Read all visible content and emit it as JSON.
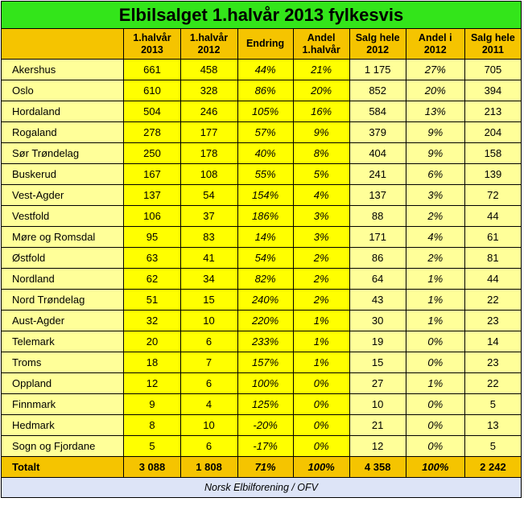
{
  "title": "Elbilsalget 1.halvår 2013 fylkesvis",
  "headers": [
    {
      "l1": "1.halvår",
      "l2": "2013"
    },
    {
      "l1": "1.halvår",
      "l2": "2012"
    },
    {
      "l1": "Endring",
      "l2": ""
    },
    {
      "l1": "Andel",
      "l2": "1.halvår"
    },
    {
      "l1": "Salg hele",
      "l2": "2012"
    },
    {
      "l1": "Andel i",
      "l2": "2012"
    },
    {
      "l1": "Salg hele",
      "l2": "2011"
    }
  ],
  "rows": [
    {
      "name": "Akershus",
      "h2013": "661",
      "h2012": "458",
      "endring": "44%",
      "andel_h": "21%",
      "salg2012": "1 175",
      "andel2012": "27%",
      "salg2011": "705"
    },
    {
      "name": "Oslo",
      "h2013": "610",
      "h2012": "328",
      "endring": "86%",
      "andel_h": "20%",
      "salg2012": "852",
      "andel2012": "20%",
      "salg2011": "394"
    },
    {
      "name": "Hordaland",
      "h2013": "504",
      "h2012": "246",
      "endring": "105%",
      "andel_h": "16%",
      "salg2012": "584",
      "andel2012": "13%",
      "salg2011": "213"
    },
    {
      "name": "Rogaland",
      "h2013": "278",
      "h2012": "177",
      "endring": "57%",
      "andel_h": "9%",
      "salg2012": "379",
      "andel2012": "9%",
      "salg2011": "204"
    },
    {
      "name": "Sør Trøndelag",
      "h2013": "250",
      "h2012": "178",
      "endring": "40%",
      "andel_h": "8%",
      "salg2012": "404",
      "andel2012": "9%",
      "salg2011": "158"
    },
    {
      "name": "Buskerud",
      "h2013": "167",
      "h2012": "108",
      "endring": "55%",
      "andel_h": "5%",
      "salg2012": "241",
      "andel2012": "6%",
      "salg2011": "139"
    },
    {
      "name": "Vest-Agder",
      "h2013": "137",
      "h2012": "54",
      "endring": "154%",
      "andel_h": "4%",
      "salg2012": "137",
      "andel2012": "3%",
      "salg2011": "72"
    },
    {
      "name": "Vestfold",
      "h2013": "106",
      "h2012": "37",
      "endring": "186%",
      "andel_h": "3%",
      "salg2012": "88",
      "andel2012": "2%",
      "salg2011": "44"
    },
    {
      "name": "Møre og Romsdal",
      "h2013": "95",
      "h2012": "83",
      "endring": "14%",
      "andel_h": "3%",
      "salg2012": "171",
      "andel2012": "4%",
      "salg2011": "61"
    },
    {
      "name": "Østfold",
      "h2013": "63",
      "h2012": "41",
      "endring": "54%",
      "andel_h": "2%",
      "salg2012": "86",
      "andel2012": "2%",
      "salg2011": "81"
    },
    {
      "name": "Nordland",
      "h2013": "62",
      "h2012": "34",
      "endring": "82%",
      "andel_h": "2%",
      "salg2012": "64",
      "andel2012": "1%",
      "salg2011": "44"
    },
    {
      "name": "Nord Trøndelag",
      "h2013": "51",
      "h2012": "15",
      "endring": "240%",
      "andel_h": "2%",
      "salg2012": "43",
      "andel2012": "1%",
      "salg2011": "22"
    },
    {
      "name": "Aust-Agder",
      "h2013": "32",
      "h2012": "10",
      "endring": "220%",
      "andel_h": "1%",
      "salg2012": "30",
      "andel2012": "1%",
      "salg2011": "23"
    },
    {
      "name": "Telemark",
      "h2013": "20",
      "h2012": "6",
      "endring": "233%",
      "andel_h": "1%",
      "salg2012": "19",
      "andel2012": "0%",
      "salg2011": "14"
    },
    {
      "name": "Troms",
      "h2013": "18",
      "h2012": "7",
      "endring": "157%",
      "andel_h": "1%",
      "salg2012": "15",
      "andel2012": "0%",
      "salg2011": "23"
    },
    {
      "name": "Oppland",
      "h2013": "12",
      "h2012": "6",
      "endring": "100%",
      "andel_h": "0%",
      "salg2012": "27",
      "andel2012": "1%",
      "salg2011": "22"
    },
    {
      "name": "Finnmark",
      "h2013": "9",
      "h2012": "4",
      "endring": "125%",
      "andel_h": "0%",
      "salg2012": "10",
      "andel2012": "0%",
      "salg2011": "5"
    },
    {
      "name": "Hedmark",
      "h2013": "8",
      "h2012": "10",
      "endring": "-20%",
      "andel_h": "0%",
      "salg2012": "21",
      "andel2012": "0%",
      "salg2011": "13"
    },
    {
      "name": "Sogn og Fjordane",
      "h2013": "5",
      "h2012": "6",
      "endring": "-17%",
      "andel_h": "0%",
      "salg2012": "12",
      "andel2012": "0%",
      "salg2011": "5"
    }
  ],
  "total": {
    "name": "Totalt",
    "h2013": "3 088",
    "h2012": "1 808",
    "endring": "71%",
    "andel_h": "100%",
    "salg2012": "4 358",
    "andel2012": "100%",
    "salg2011": "2 242"
  },
  "footer": "Norsk Elbilforening / OFV",
  "colors": {
    "title_bg": "#33e51a",
    "header_bg": "#f5c400",
    "cell_yellow": "#ffff00",
    "cell_light": "#ffff99",
    "footer_bg": "#dde4f7"
  }
}
